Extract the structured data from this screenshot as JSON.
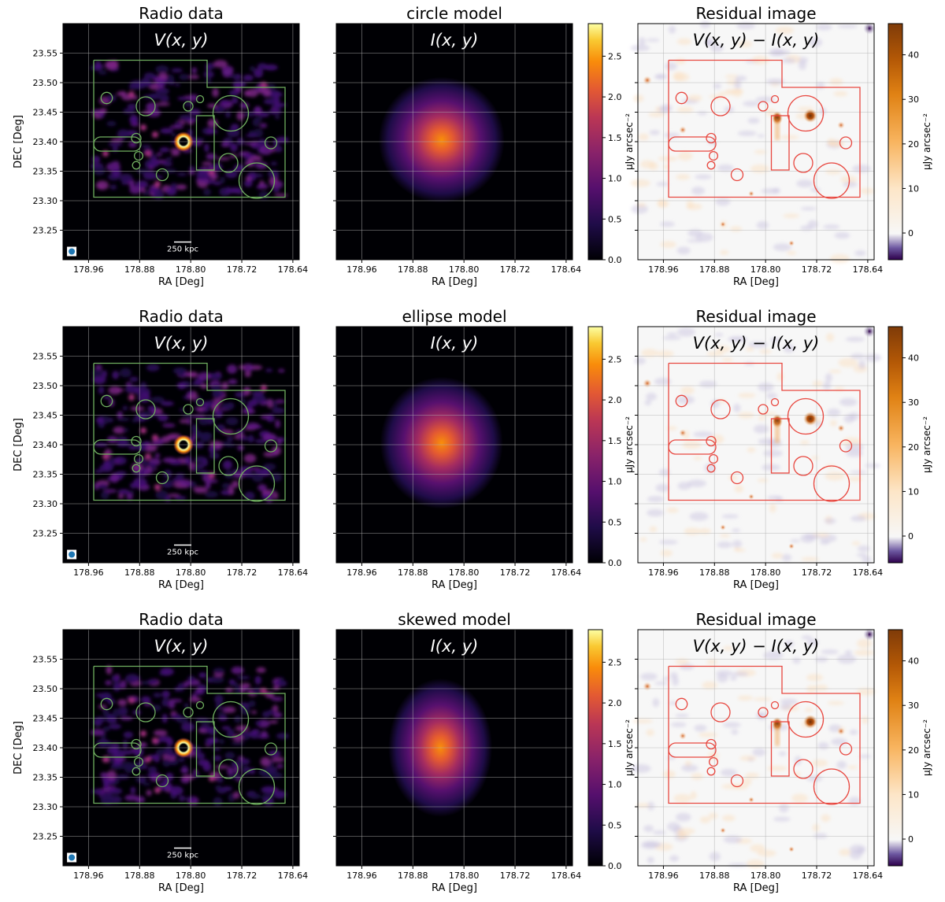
{
  "chart_data": {
    "type": "heatmap",
    "layout": "3 rows x 3 columns",
    "common": {
      "xlabel": "RA [Deg]",
      "ylabel": "DEC [Deg]",
      "xlim": [
        179.0,
        178.63
      ],
      "ylim": [
        23.2,
        23.6
      ],
      "xticks": [
        "178.96",
        "178.88",
        "178.80",
        "178.72",
        "178.64"
      ],
      "yticks": [
        "23.25",
        "23.30",
        "23.35",
        "23.40",
        "23.45",
        "23.50",
        "23.55"
      ],
      "grid": true,
      "scalebar_label": "250 kpc",
      "cbar_label": "μJy arcsec⁻²",
      "model_cbar_ticks": [
        "0.0",
        "0.5",
        "1.0",
        "1.5",
        "2.0",
        "2.5"
      ],
      "model_cbar_range": [
        0,
        2.9
      ],
      "residual_cbar_ticks": [
        "0",
        "10",
        "20",
        "30",
        "40"
      ],
      "residual_cbar_range": [
        -6,
        47
      ],
      "colors": {
        "data_colormap": "inferno",
        "model_colormap": "inferno",
        "residual_colormap": "PuOr_r",
        "mask_data": "#6fae5f",
        "mask_residual": "#e8473f"
      }
    },
    "rows": [
      {
        "model": "circle",
        "panels": [
          {
            "title": "Radio data",
            "annotation": "V(x, y)"
          },
          {
            "title": "circle model",
            "annotation": "I(x, y)"
          },
          {
            "title": "Residual image",
            "annotation": "V(x, y) − I(x, y)"
          }
        ],
        "model_peak": {
          "ra": 178.835,
          "dec": 23.403,
          "peak": 2.0
        }
      },
      {
        "model": "ellipse",
        "panels": [
          {
            "title": "Radio data",
            "annotation": "V(x, y)"
          },
          {
            "title": "ellipse model",
            "annotation": "I(x, y)"
          },
          {
            "title": "Residual image",
            "annotation": "V(x, y) − I(x, y)"
          }
        ],
        "model_peak": {
          "ra": 178.835,
          "dec": 23.403,
          "peak": 2.0
        }
      },
      {
        "model": "skewed",
        "panels": [
          {
            "title": "Radio data",
            "annotation": "V(x, y)"
          },
          {
            "title": "skewed model",
            "annotation": "I(x, y)"
          },
          {
            "title": "Residual image",
            "annotation": "V(x, y) − I(x, y)"
          }
        ],
        "model_peak": {
          "ra": 178.837,
          "dec": 23.4,
          "peak": 2.0
        }
      }
    ]
  }
}
